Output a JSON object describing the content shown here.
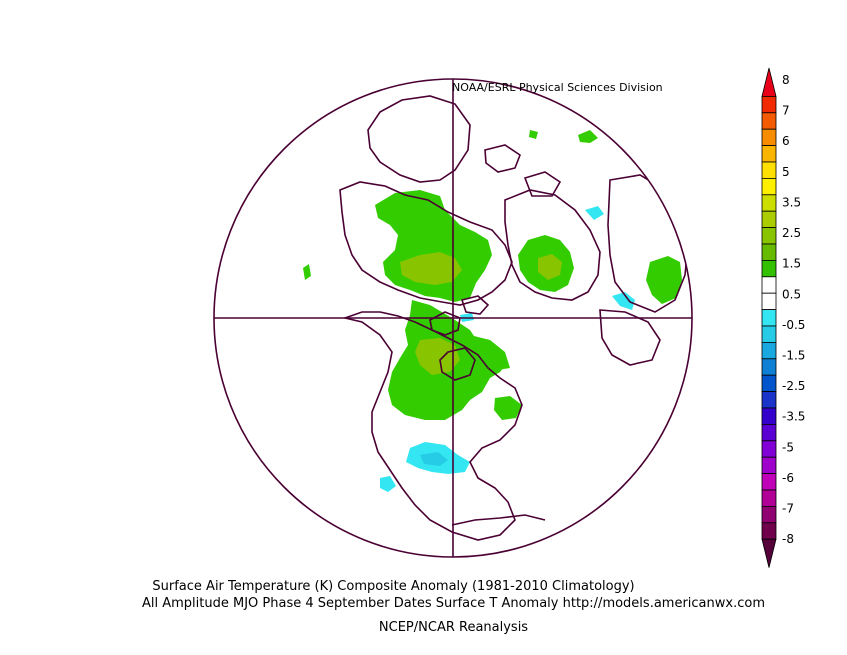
{
  "credit": "NOAA/ESRL Physical Sciences Division",
  "caption": {
    "line1": "Surface Air Temperature (K) Composite Anomaly (1981-2010 Climatology)",
    "line2": "All Amplitude MJO Phase 4 September Dates Surface T Anomaly http://models.americanwx.com",
    "line3": "NCEP/NCAR Reanalysis"
  },
  "colorbar": {
    "labels": [
      "8",
      "7",
      "6",
      "5",
      "3.5",
      "2.5",
      "1.5",
      "0.5",
      "-0.5",
      "-1.5",
      "-2.5",
      "-3.5",
      "-5",
      "-6",
      "-7",
      "-8"
    ],
    "colors": [
      "#e8001a",
      "#f22a00",
      "#f45b00",
      "#f78c00",
      "#fbb400",
      "#ffe000",
      "#fff000",
      "#ccdd00",
      "#aacc00",
      "#88c400",
      "#66bb00",
      "#33c000",
      "#ffffff",
      "#ffffff",
      "#33e6f2",
      "#26cce6",
      "#1aa8e0",
      "#0d80d6",
      "#0055cc",
      "#1a33c8",
      "#3300cc",
      "#5a00d2",
      "#8000d6",
      "#a000cc",
      "#c000b8",
      "#b00096",
      "#900070",
      "#70004c",
      "#56003a"
    ],
    "colors_note": "colors listed top to bottom"
  },
  "anomaly_colors": {
    "warm_light": "#33cc00",
    "warm_mid": "#88c400",
    "cool_light": "#33e6f2"
  }
}
